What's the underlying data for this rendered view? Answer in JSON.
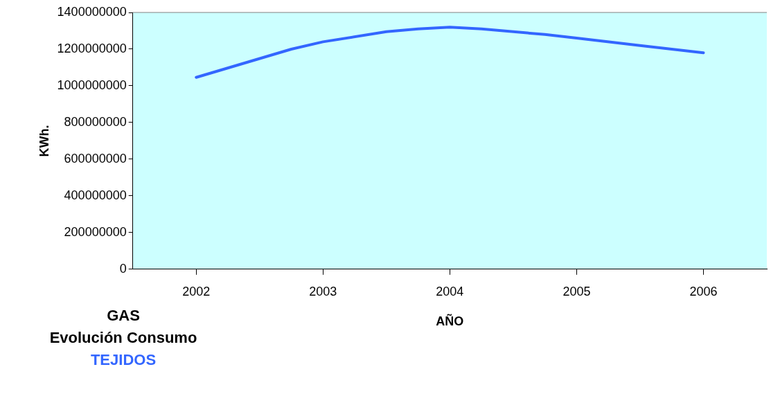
{
  "chart_data": {
    "type": "line",
    "title": "GAS\nEvolución Consumo",
    "subtitle": "TEJIDOS",
    "xlabel": "AÑO",
    "ylabel": "KWh.",
    "x": [
      2002,
      2002.75,
      2003,
      2003.5,
      2003.75,
      2004,
      2004.25,
      2004.75,
      2005,
      2005.5,
      2006
    ],
    "series": [
      {
        "color": "#3366ff",
        "values": [
          1046000000,
          1200000000,
          1240000000,
          1295000000,
          1310000000,
          1320000000,
          1310000000,
          1280000000,
          1260000000,
          1220000000,
          1180000000
        ]
      }
    ],
    "xlim": [
      2001.5,
      2006.5
    ],
    "xticks": [
      2002,
      2003,
      2004,
      2005,
      2006
    ],
    "ylim": [
      0,
      1400000000
    ],
    "yticks": [
      0,
      200000000,
      400000000,
      600000000,
      800000000,
      1000000000,
      1200000000,
      1400000000
    ],
    "grid": false,
    "legend": false,
    "marker": "none",
    "line_style": "solid"
  }
}
